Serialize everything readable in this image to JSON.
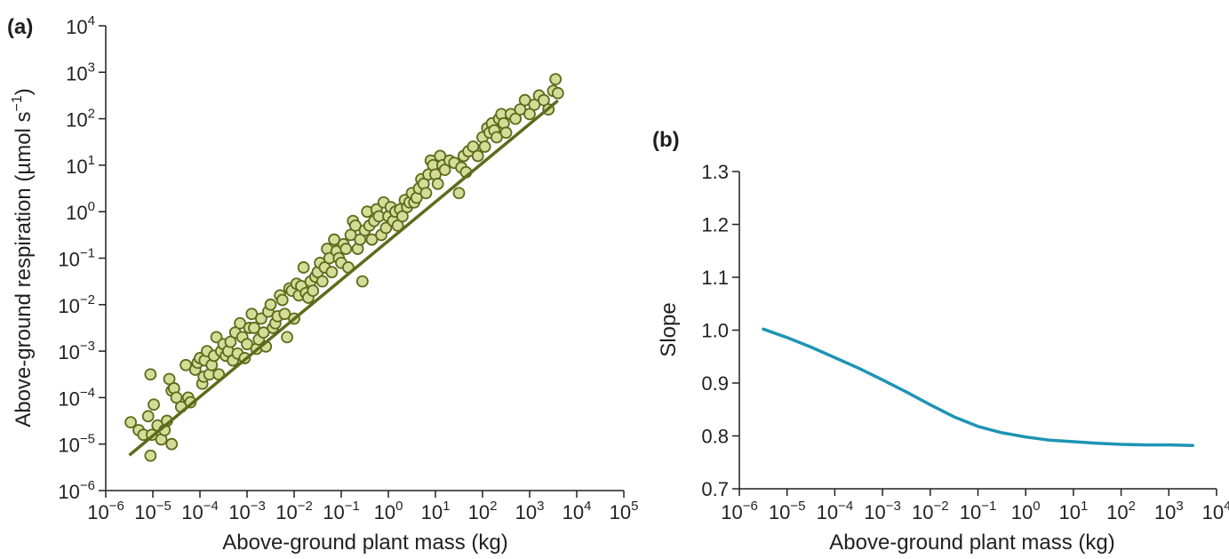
{
  "chart_data": [
    {
      "panel_label": "(a)",
      "type": "scatter",
      "xlabel": "Above-ground plant mass (kg)",
      "ylabel": "Above-ground respiration (µmol s",
      "ylabel_sup": "−1",
      "ylabel_close": ")",
      "x_scale": "log",
      "y_scale": "log",
      "xlim": [
        1e-06,
        100000.0
      ],
      "ylim": [
        1e-06,
        10000.0
      ],
      "x_ticks": [
        {
          "base": "10",
          "exp": "−6"
        },
        {
          "base": "10",
          "exp": "−5"
        },
        {
          "base": "10",
          "exp": "−4"
        },
        {
          "base": "10",
          "exp": "−3"
        },
        {
          "base": "10",
          "exp": "−2"
        },
        {
          "base": "10",
          "exp": "−1"
        },
        {
          "base": "10",
          "exp": "0"
        },
        {
          "base": "10",
          "exp": "1"
        },
        {
          "base": "10",
          "exp": "2"
        },
        {
          "base": "10",
          "exp": "3"
        },
        {
          "base": "10",
          "exp": "4"
        },
        {
          "base": "10",
          "exp": "5"
        }
      ],
      "y_ticks": [
        {
          "base": "10",
          "exp": "−6"
        },
        {
          "base": "10",
          "exp": "−5"
        },
        {
          "base": "10",
          "exp": "−4"
        },
        {
          "base": "10",
          "exp": "−3"
        },
        {
          "base": "10",
          "exp": "−2"
        },
        {
          "base": "10",
          "exp": "−1"
        },
        {
          "base": "10",
          "exp": "0"
        },
        {
          "base": "10",
          "exp": "1"
        },
        {
          "base": "10",
          "exp": "2"
        },
        {
          "base": "10",
          "exp": "3"
        },
        {
          "base": "10",
          "exp": "4"
        }
      ],
      "point_color": "#d3dd98",
      "point_edge_color": "#5d6b1c",
      "line_color": "#5d6b1c",
      "grid": false,
      "legend": "none",
      "points_log10": [
        [
          -5.47,
          -4.53
        ],
        [
          -5.3,
          -4.7
        ],
        [
          -5.2,
          -4.8
        ],
        [
          -5.05,
          -3.5
        ],
        [
          -5.1,
          -4.4
        ],
        [
          -5.02,
          -4.8
        ],
        [
          -4.98,
          -4.15
        ],
        [
          -4.9,
          -4.6
        ],
        [
          -4.82,
          -4.9
        ],
        [
          -4.75,
          -4.7
        ],
        [
          -4.7,
          -4.5
        ],
        [
          -4.65,
          -3.6
        ],
        [
          -4.6,
          -3.85
        ],
        [
          -4.55,
          -3.8
        ],
        [
          -4.5,
          -4.0
        ],
        [
          -4.6,
          -5.0
        ],
        [
          -5.05,
          -5.25
        ],
        [
          -4.4,
          -4.2
        ],
        [
          -4.3,
          -3.3
        ],
        [
          -4.25,
          -4.0
        ],
        [
          -4.2,
          -4.1
        ],
        [
          -4.1,
          -3.4
        ],
        [
          -4.05,
          -3.25
        ],
        [
          -4.0,
          -3.15
        ],
        [
          -3.95,
          -3.7
        ],
        [
          -3.92,
          -3.55
        ],
        [
          -3.9,
          -3.2
        ],
        [
          -3.85,
          -3.0
        ],
        [
          -3.8,
          -3.5
        ],
        [
          -3.75,
          -3.3
        ],
        [
          -3.7,
          -3.1
        ],
        [
          -3.65,
          -2.7
        ],
        [
          -3.6,
          -3.5
        ],
        [
          -3.55,
          -3.0
        ],
        [
          -3.5,
          -2.85
        ],
        [
          -3.45,
          -3.1
        ],
        [
          -3.4,
          -3.0
        ],
        [
          -3.35,
          -2.8
        ],
        [
          -3.3,
          -3.2
        ],
        [
          -3.25,
          -2.6
        ],
        [
          -3.2,
          -3.05
        ],
        [
          -3.15,
          -2.4
        ],
        [
          -3.1,
          -2.7
        ],
        [
          -3.05,
          -3.15
        ],
        [
          -3.0,
          -2.85
        ],
        [
          -2.95,
          -2.5
        ],
        [
          -2.9,
          -2.2
        ],
        [
          -2.85,
          -2.5
        ],
        [
          -2.8,
          -2.95
        ],
        [
          -2.75,
          -2.75
        ],
        [
          -2.7,
          -2.3
        ],
        [
          -2.65,
          -2.6
        ],
        [
          -2.6,
          -2.9
        ],
        [
          -2.55,
          -2.15
        ],
        [
          -2.5,
          -2.0
        ],
        [
          -2.45,
          -2.5
        ],
        [
          -2.4,
          -2.4
        ],
        [
          -2.35,
          -2.25
        ],
        [
          -2.3,
          -1.8
        ],
        [
          -2.25,
          -1.9
        ],
        [
          -2.2,
          -2.2
        ],
        [
          -2.15,
          -2.7
        ],
        [
          -2.1,
          -1.65
        ],
        [
          -2.05,
          -1.7
        ],
        [
          -2.0,
          -2.3
        ],
        [
          -1.95,
          -1.55
        ],
        [
          -1.9,
          -1.8
        ],
        [
          -1.85,
          -1.6
        ],
        [
          -1.8,
          -1.2
        ],
        [
          -1.75,
          -1.75
        ],
        [
          -1.7,
          -1.85
        ],
        [
          -1.65,
          -1.5
        ],
        [
          -1.6,
          -1.7
        ],
        [
          -1.55,
          -1.4
        ],
        [
          -1.5,
          -1.3
        ],
        [
          -1.45,
          -1.1
        ],
        [
          -1.4,
          -1.5
        ],
        [
          -1.35,
          -1.2
        ],
        [
          -1.3,
          -0.8
        ],
        [
          -1.25,
          -1.0
        ],
        [
          -1.2,
          -1.3
        ],
        [
          -1.15,
          -0.6
        ],
        [
          -1.1,
          -0.85
        ],
        [
          -1.05,
          -1.0
        ],
        [
          -1.0,
          -1.1
        ],
        [
          -0.95,
          -0.7
        ],
        [
          -0.9,
          -0.8
        ],
        [
          -0.85,
          -1.2
        ],
        [
          -0.8,
          -0.5
        ],
        [
          -0.75,
          -0.2
        ],
        [
          -0.7,
          -0.3
        ],
        [
          -0.65,
          -0.8
        ],
        [
          -0.6,
          -0.6
        ],
        [
          -0.55,
          -1.5
        ],
        [
          -0.5,
          -0.4
        ],
        [
          -0.45,
          0.0
        ],
        [
          -0.4,
          -0.3
        ],
        [
          -0.35,
          -0.6
        ],
        [
          -0.3,
          -0.2
        ],
        [
          -0.25,
          0.05
        ],
        [
          -0.2,
          -0.1
        ],
        [
          -0.15,
          -0.5
        ],
        [
          -0.1,
          0.2
        ],
        [
          -0.05,
          -0.35
        ],
        [
          0.0,
          -0.1
        ],
        [
          0.05,
          0.1
        ],
        [
          0.1,
          -0.2
        ],
        [
          0.15,
          0.0
        ],
        [
          0.2,
          -0.3
        ],
        [
          0.25,
          0.05
        ],
        [
          0.3,
          -0.1
        ],
        [
          0.35,
          0.25
        ],
        [
          0.4,
          0.1
        ],
        [
          0.45,
          0.2
        ],
        [
          0.5,
          0.4
        ],
        [
          0.55,
          0.2
        ],
        [
          0.6,
          0.3
        ],
        [
          0.65,
          0.5
        ],
        [
          0.7,
          0.7
        ],
        [
          0.75,
          0.6
        ],
        [
          0.8,
          0.4
        ],
        [
          0.85,
          0.8
        ],
        [
          0.9,
          1.1
        ],
        [
          0.95,
          1.0
        ],
        [
          1.0,
          0.8
        ],
        [
          1.05,
          0.6
        ],
        [
          1.1,
          1.2
        ],
        [
          1.15,
          1.0
        ],
        [
          1.2,
          0.9
        ],
        [
          1.3,
          1.1
        ],
        [
          1.4,
          1.05
        ],
        [
          1.5,
          0.4
        ],
        [
          1.55,
          0.95
        ],
        [
          1.6,
          1.2
        ],
        [
          1.65,
          0.85
        ],
        [
          1.7,
          1.3
        ],
        [
          1.8,
          1.4
        ],
        [
          1.9,
          1.2
        ],
        [
          2.0,
          1.6
        ],
        [
          2.05,
          1.4
        ],
        [
          2.1,
          1.8
        ],
        [
          2.15,
          1.7
        ],
        [
          2.2,
          1.9
        ],
        [
          2.25,
          1.75
        ],
        [
          2.3,
          1.6
        ],
        [
          2.35,
          2.0
        ],
        [
          2.4,
          2.1
        ],
        [
          2.45,
          1.9
        ],
        [
          2.5,
          1.7
        ],
        [
          2.6,
          2.1
        ],
        [
          2.7,
          2.0
        ],
        [
          2.8,
          2.2
        ],
        [
          2.9,
          2.4
        ],
        [
          3.0,
          2.1
        ],
        [
          3.1,
          2.3
        ],
        [
          3.2,
          2.5
        ],
        [
          3.3,
          2.4
        ],
        [
          3.4,
          2.2
        ],
        [
          3.5,
          2.6
        ],
        [
          3.55,
          2.85
        ],
        [
          3.6,
          2.55
        ]
      ],
      "fit_line_log10": {
        "x": [
          -5.5,
          3.6
        ],
        "y": [
          -5.24,
          2.39
        ]
      }
    },
    {
      "panel_label": "(b)",
      "type": "line",
      "xlabel": "Above-ground plant mass (kg)",
      "ylabel": "Slope",
      "x_scale": "log",
      "xlim": [
        1e-06,
        10000.0
      ],
      "ylim": [
        0.7,
        1.3
      ],
      "x_ticks": [
        {
          "base": "10",
          "exp": "−6"
        },
        {
          "base": "10",
          "exp": "−5"
        },
        {
          "base": "10",
          "exp": "−4"
        },
        {
          "base": "10",
          "exp": "−3"
        },
        {
          "base": "10",
          "exp": "−2"
        },
        {
          "base": "10",
          "exp": "−1"
        },
        {
          "base": "10",
          "exp": "0"
        },
        {
          "base": "10",
          "exp": "1"
        },
        {
          "base": "10",
          "exp": "2"
        },
        {
          "base": "10",
          "exp": "3"
        },
        {
          "base": "10",
          "exp": "4"
        }
      ],
      "y_ticks": [
        "0.7",
        "0.8",
        "0.9",
        "1.0",
        "1.1",
        "1.2",
        "1.3"
      ],
      "line_color": "#1e94b4",
      "grid": false,
      "legend": "none",
      "x_log10": [
        -5.5,
        -5,
        -4.5,
        -4,
        -3.5,
        -3,
        -2.5,
        -2,
        -1.5,
        -1,
        -0.5,
        0,
        0.5,
        1,
        1.5,
        2,
        2.5,
        3,
        3.5
      ],
      "y": [
        1.002,
        0.986,
        0.968,
        0.948,
        0.928,
        0.906,
        0.883,
        0.859,
        0.836,
        0.818,
        0.806,
        0.798,
        0.792,
        0.789,
        0.786,
        0.784,
        0.783,
        0.783,
        0.782
      ]
    }
  ]
}
